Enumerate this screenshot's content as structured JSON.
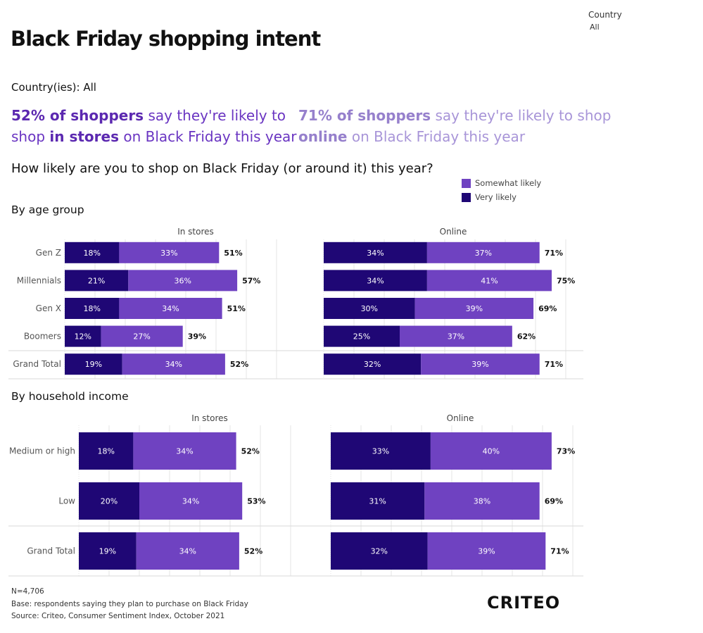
{
  "header": {
    "title": "Black Friday shopping intent",
    "filter_label": "Country",
    "filter_value": "All",
    "country_line": "Country(ies): All"
  },
  "kpis": {
    "stores": {
      "pct": "52% of shoppers",
      "mid": " say they're likely to",
      "line2a": "shop ",
      "channel": "in stores",
      "line2b": " on Black Friday this year"
    },
    "online": {
      "pct": "71% of shoppers",
      "mid": " say they're likely to shop",
      "line2a": "",
      "channel": "online",
      "line2b": " on Black Friday this year"
    }
  },
  "question": "How likely are you to shop on Black Friday (or around it) this year?",
  "legend": [
    {
      "label": "Somewhat likely",
      "color": "#6f42c1"
    },
    {
      "label": "Very likely",
      "color": "#1f0775"
    }
  ],
  "colors": {
    "very": "#1f0775",
    "somewhat": "#6f42c1",
    "grid": "#e6e6e6",
    "separator": "#d8d8d8",
    "label_text": "#ffffff",
    "total_text": "#111111"
  },
  "sections": {
    "age": "By age group",
    "income": "By household income"
  },
  "chart_data": [
    {
      "type": "bar",
      "orientation": "horizontal",
      "stacked": true,
      "title": "By age group",
      "panels": [
        "In stores",
        "Online"
      ],
      "categories": [
        "Gen Z",
        "Millennials",
        "Gen X",
        "Boomers",
        "Grand Total"
      ],
      "series": [
        {
          "name": "Very likely",
          "panel": "In stores",
          "values": [
            18,
            21,
            18,
            12,
            19
          ],
          "labels": [
            "18%",
            "21%",
            "18%",
            "12%",
            "19%"
          ]
        },
        {
          "name": "Somewhat likely",
          "panel": "In stores",
          "values": [
            33,
            36,
            34,
            27,
            34
          ],
          "labels": [
            "33%",
            "36%",
            "34%",
            "27%",
            "34%"
          ]
        },
        {
          "name": "Very likely",
          "panel": "Online",
          "values": [
            34,
            34,
            30,
            25,
            32
          ],
          "labels": [
            "34%",
            "34%",
            "30%",
            "25%",
            "32%"
          ]
        },
        {
          "name": "Somewhat likely",
          "panel": "Online",
          "values": [
            37,
            41,
            39,
            37,
            39
          ],
          "labels": [
            "37%",
            "41%",
            "39%",
            "37%",
            "39%"
          ]
        }
      ],
      "totals": {
        "In stores": [
          "51%",
          "57%",
          "51%",
          "39%",
          "52%"
        ],
        "Online": [
          "71%",
          "75%",
          "69%",
          "62%",
          "71%"
        ]
      },
      "unit": "%"
    },
    {
      "type": "bar",
      "orientation": "horizontal",
      "stacked": true,
      "title": "By household income",
      "panels": [
        "In stores",
        "Online"
      ],
      "categories": [
        "Medium or high",
        "Low",
        "Grand Total"
      ],
      "series": [
        {
          "name": "Very likely",
          "panel": "In stores",
          "values": [
            18,
            20,
            19
          ],
          "labels": [
            "18%",
            "20%",
            "19%"
          ]
        },
        {
          "name": "Somewhat likely",
          "panel": "In stores",
          "values": [
            34,
            34,
            34
          ],
          "labels": [
            "34%",
            "34%",
            "34%"
          ]
        },
        {
          "name": "Very likely",
          "panel": "Online",
          "values": [
            33,
            31,
            32
          ],
          "labels": [
            "33%",
            "31%",
            "32%"
          ]
        },
        {
          "name": "Somewhat likely",
          "panel": "Online",
          "values": [
            40,
            38,
            39
          ],
          "labels": [
            "40%",
            "38%",
            "39%"
          ]
        }
      ],
      "totals": {
        "In stores": [
          "52%",
          "53%",
          "52%"
        ],
        "Online": [
          "73%",
          "69%",
          "71%"
        ]
      },
      "unit": "%"
    }
  ],
  "footer": {
    "n": "N=4,706",
    "base": "Base: respondents saying they plan to purchase on Black Friday",
    "source": "Source: Criteo, Consumer Sentiment Index, October 2021",
    "logo": "CRITEO"
  }
}
